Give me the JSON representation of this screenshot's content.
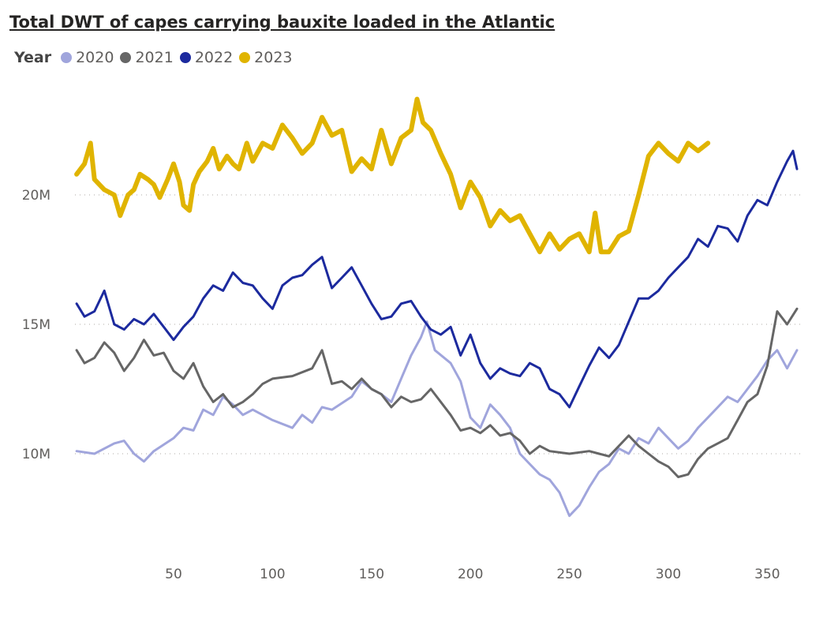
{
  "chart_data": {
    "type": "line",
    "title": "Total DWT of capes carrying bauxite loaded in the Atlantic",
    "legend_title": "Year",
    "legend_position": "top-left",
    "xlabel": "",
    "ylabel": "",
    "x_ticks": [
      "50",
      "100",
      "150",
      "200",
      "250",
      "300",
      "350"
    ],
    "x_tick_values": [
      50,
      100,
      150,
      200,
      250,
      300,
      350
    ],
    "y_ticks": [
      "10M",
      "15M",
      "20M"
    ],
    "y_tick_values": [
      10,
      15,
      20
    ],
    "y_unit": "M",
    "xlim": [
      0,
      368
    ],
    "ylim": [
      5.3,
      25.5
    ],
    "grid": "horizontal dotted",
    "series": [
      {
        "name": "2020",
        "color": "#a0a5dc",
        "width": 3,
        "x": [
          1,
          10,
          20,
          25,
          30,
          35,
          40,
          50,
          55,
          60,
          65,
          70,
          75,
          80,
          85,
          90,
          100,
          110,
          115,
          120,
          125,
          130,
          140,
          145,
          150,
          155,
          160,
          165,
          170,
          175,
          178,
          182,
          190,
          195,
          200,
          205,
          210,
          215,
          220,
          225,
          230,
          235,
          240,
          245,
          250,
          255,
          260,
          265,
          270,
          275,
          280,
          285,
          290,
          295,
          300,
          305,
          310,
          315,
          320,
          325,
          330,
          335,
          340,
          345,
          350,
          355,
          360,
          365
        ],
        "y": [
          10.1,
          10.0,
          10.4,
          10.5,
          10.0,
          9.7,
          10.1,
          10.6,
          11.0,
          10.9,
          11.7,
          11.5,
          12.2,
          11.9,
          11.5,
          11.7,
          11.3,
          11.0,
          11.5,
          11.2,
          11.8,
          11.7,
          12.2,
          12.8,
          12.5,
          12.3,
          12.0,
          12.9,
          13.8,
          14.5,
          15.1,
          14.0,
          13.5,
          12.8,
          11.4,
          11.0,
          11.9,
          11.5,
          11.0,
          10.0,
          9.6,
          9.2,
          9.0,
          8.5,
          7.6,
          8.0,
          8.7,
          9.3,
          9.6,
          10.2,
          10.0,
          10.6,
          10.4,
          11.0,
          10.6,
          10.2,
          10.5,
          11.0,
          11.4,
          11.8,
          12.2,
          12.0,
          12.5,
          13.0,
          13.6,
          14.0,
          13.3,
          14.0
        ]
      },
      {
        "name": "2021",
        "color": "#666666",
        "width": 3,
        "x": [
          1,
          5,
          10,
          15,
          20,
          25,
          30,
          35,
          40,
          45,
          50,
          55,
          60,
          65,
          70,
          75,
          80,
          85,
          90,
          95,
          100,
          110,
          120,
          125,
          130,
          135,
          140,
          145,
          150,
          155,
          160,
          165,
          170,
          175,
          180,
          185,
          190,
          195,
          200,
          205,
          210,
          215,
          220,
          225,
          230,
          235,
          240,
          250,
          260,
          265,
          270,
          280,
          285,
          290,
          295,
          300,
          305,
          310,
          315,
          320,
          325,
          330,
          335,
          340,
          345,
          350,
          355,
          360,
          365
        ],
        "y": [
          14.0,
          13.5,
          13.7,
          14.3,
          13.9,
          13.2,
          13.7,
          14.4,
          13.8,
          13.9,
          13.2,
          12.9,
          13.5,
          12.6,
          12.0,
          12.3,
          11.8,
          12.0,
          12.3,
          12.7,
          12.9,
          13.0,
          13.3,
          14.0,
          12.7,
          12.8,
          12.5,
          12.9,
          12.5,
          12.3,
          11.8,
          12.2,
          12.0,
          12.1,
          12.5,
          12.0,
          11.5,
          10.9,
          11.0,
          10.8,
          11.1,
          10.7,
          10.8,
          10.5,
          10.0,
          10.3,
          10.1,
          10.0,
          10.1,
          10.0,
          9.9,
          10.7,
          10.3,
          10.0,
          9.7,
          9.5,
          9.1,
          9.2,
          9.8,
          10.2,
          10.4,
          10.6,
          11.3,
          12.0,
          12.3,
          13.4,
          15.5,
          15.0,
          15.6
        ]
      },
      {
        "name": "2022",
        "color": "#1c2a9e",
        "width": 3,
        "x": [
          1,
          5,
          10,
          15,
          20,
          25,
          30,
          35,
          40,
          45,
          50,
          55,
          60,
          65,
          70,
          75,
          80,
          85,
          90,
          95,
          100,
          105,
          110,
          115,
          120,
          125,
          130,
          135,
          140,
          145,
          150,
          155,
          160,
          165,
          170,
          175,
          180,
          185,
          190,
          195,
          200,
          205,
          210,
          215,
          220,
          225,
          230,
          235,
          240,
          245,
          250,
          255,
          260,
          265,
          270,
          275,
          280,
          285,
          290,
          295,
          300,
          305,
          310,
          315,
          320,
          325,
          330,
          335,
          340,
          345,
          350,
          355,
          360,
          363,
          365
        ],
        "y": [
          15.8,
          15.3,
          15.5,
          16.3,
          15.0,
          14.8,
          15.2,
          15.0,
          15.4,
          14.9,
          14.4,
          14.9,
          15.3,
          16.0,
          16.5,
          16.3,
          17.0,
          16.6,
          16.5,
          16.0,
          15.6,
          16.5,
          16.8,
          16.9,
          17.3,
          17.6,
          16.4,
          16.8,
          17.2,
          16.5,
          15.8,
          15.2,
          15.3,
          15.8,
          15.9,
          15.3,
          14.8,
          14.6,
          14.9,
          13.8,
          14.6,
          13.5,
          12.9,
          13.3,
          13.1,
          13.0,
          13.5,
          13.3,
          12.5,
          12.3,
          11.8,
          12.6,
          13.4,
          14.1,
          13.7,
          14.2,
          15.1,
          16.0,
          16.0,
          16.3,
          16.8,
          17.2,
          17.6,
          18.3,
          18.0,
          18.8,
          18.7,
          18.2,
          19.2,
          19.8,
          19.6,
          20.5,
          21.3,
          21.7,
          21.0
        ]
      },
      {
        "name": "2023",
        "color": "#e0b400",
        "width": 6,
        "x": [
          1,
          5,
          8,
          10,
          15,
          20,
          23,
          27,
          30,
          33,
          37,
          40,
          43,
          47,
          50,
          53,
          55,
          58,
          60,
          63,
          67,
          70,
          73,
          77,
          80,
          83,
          87,
          90,
          95,
          100,
          105,
          110,
          115,
          120,
          125,
          130,
          135,
          140,
          145,
          150,
          155,
          160,
          165,
          170,
          173,
          176,
          180,
          185,
          190,
          195,
          200,
          205,
          210,
          215,
          220,
          225,
          230,
          235,
          240,
          245,
          250,
          255,
          260,
          263,
          266,
          270,
          275,
          280,
          285,
          290,
          295,
          300,
          305,
          310,
          315,
          320
        ],
        "y": [
          20.8,
          21.2,
          22.0,
          20.6,
          20.2,
          20.0,
          19.2,
          20.0,
          20.2,
          20.8,
          20.6,
          20.4,
          19.9,
          20.6,
          21.2,
          20.5,
          19.6,
          19.4,
          20.4,
          20.9,
          21.3,
          21.8,
          21.0,
          21.5,
          21.2,
          21.0,
          22.0,
          21.3,
          22.0,
          21.8,
          22.7,
          22.2,
          21.6,
          22.0,
          23.0,
          22.3,
          22.5,
          20.9,
          21.4,
          21.0,
          22.5,
          21.2,
          22.2,
          22.5,
          23.7,
          22.8,
          22.5,
          21.6,
          20.8,
          19.5,
          20.5,
          19.9,
          18.8,
          19.4,
          19.0,
          19.2,
          18.5,
          17.8,
          18.5,
          17.9,
          18.3,
          18.5,
          17.8,
          19.3,
          17.8,
          17.8,
          18.4,
          18.6,
          20.0,
          21.5,
          22.0,
          21.6,
          21.3,
          22.0,
          21.7,
          22.0
        ]
      }
    ]
  }
}
